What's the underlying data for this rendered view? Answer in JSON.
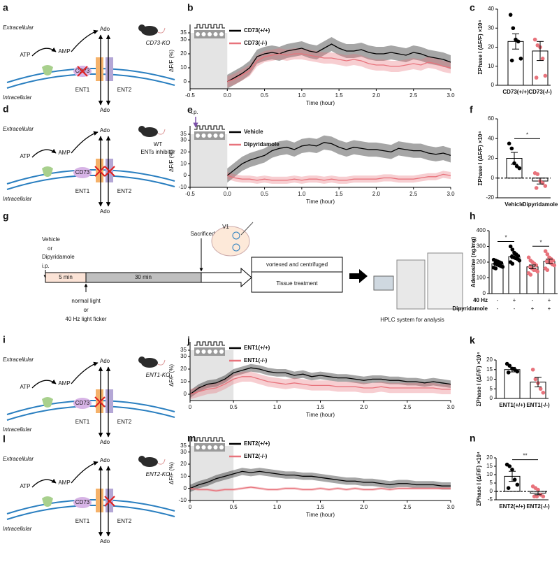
{
  "diagram_labels": {
    "extracellular": "Extracellular",
    "intracellular": "Intracellular",
    "atp": "ATP",
    "amp": "AMP",
    "ado": "Ado",
    "cd73": "CD73",
    "ent1": "ENT1",
    "ent2": "ENT2"
  },
  "diagrams": [
    {
      "panel": "a",
      "mouse_label": [
        "CD73-KO"
      ],
      "blocked": [
        "CD73"
      ]
    },
    {
      "panel": "d",
      "mouse_label": [
        "WT",
        "ENTs inhibitor"
      ],
      "blocked": [
        "ENT1",
        "ENT2"
      ]
    },
    {
      "panel": "i",
      "mouse_label": [
        "ENT1-KO"
      ],
      "blocked": [
        "ENT1"
      ]
    },
    {
      "panel": "l",
      "mouse_label": [
        "ENT2-KO"
      ],
      "blocked": [
        "ENT2"
      ]
    }
  ],
  "workflow": {
    "panel": "g",
    "treatment": [
      "Vehicle",
      "or",
      "Dipyridamole",
      "i.p."
    ],
    "stages": [
      "5 min",
      "30 min"
    ],
    "light": [
      "normal light",
      "or",
      "40 Hz light ficker"
    ],
    "sacrificed": "Sacrificed",
    "region": "V1",
    "processing": [
      "vortexed  and centrifuged",
      "Tissue treatment"
    ],
    "analysis": "HPLC system for analysis"
  },
  "chart_data": [
    {
      "panel": "b",
      "type": "line",
      "ylabel": "ΔF/F (%)",
      "xlabel": "Time (hour)",
      "xlim": [
        -0.5,
        3
      ],
      "xticks": [
        -0.5,
        {
          "value": 0,
          "label": "0.0"
        },
        0.5,
        {
          "value": 1,
          "label": "1.0"
        },
        1.5,
        {
          "value": 2,
          "label": "2.0"
        },
        2.5,
        {
          "value": 3,
          "label": "3.0"
        }
      ],
      "ylim": [
        -5,
        35
      ],
      "yticks": [
        0,
        10,
        20,
        30,
        35
      ],
      "stim_window": [
        -0.5,
        0
      ],
      "x": [
        0,
        0.1,
        0.2,
        0.3,
        0.4,
        0.5,
        0.6,
        0.7,
        0.8,
        0.9,
        1,
        1.1,
        1.2,
        1.3,
        1.4,
        1.5,
        1.6,
        1.7,
        1.8,
        1.9,
        2,
        2.1,
        2.2,
        2.3,
        2.4,
        2.5,
        2.6,
        2.7,
        2.8,
        2.9,
        3
      ],
      "series": [
        {
          "name": "CD73(+/+)",
          "color": "#000000",
          "sem": 5,
          "values": [
            0,
            3,
            6,
            10,
            18,
            20,
            21,
            20,
            22,
            23,
            24,
            22,
            21,
            24,
            27,
            24,
            22,
            22,
            23,
            21,
            20,
            20,
            21,
            20,
            19,
            21,
            20,
            18,
            17,
            16,
            14
          ]
        },
        {
          "name": "CD73(-/-)",
          "color": "#e8737c",
          "sem": 4,
          "values": [
            0,
            2,
            5,
            8,
            15,
            18,
            19,
            20,
            19,
            20,
            20,
            19,
            18,
            17,
            17,
            16,
            15,
            16,
            15,
            13,
            12,
            12,
            11,
            11,
            12,
            13,
            12,
            14,
            13,
            11,
            10
          ]
        }
      ]
    },
    {
      "panel": "c",
      "type": "bar",
      "ylabel": "ΣPhase I (ΔF/F) ×10⁴",
      "categories": [
        "CD73(+/+)",
        "CD73(-/-)"
      ],
      "values": [
        23,
        18
      ],
      "errors": [
        4,
        5
      ],
      "points": [
        [
          37,
          30,
          24,
          23,
          14,
          13
        ],
        [
          24,
          21,
          20,
          14,
          5,
          4
        ]
      ],
      "point_colors": [
        "#000000",
        "#e8737c"
      ],
      "ylim": [
        0,
        40
      ],
      "yticks": [
        0,
        10,
        20,
        30,
        40
      ]
    },
    {
      "panel": "e",
      "type": "line",
      "ylabel": "ΔF/F (%)",
      "xlabel": "Time (hour)",
      "annotation": "i.p.",
      "xlim": [
        -0.5,
        3
      ],
      "xticks": [
        -0.5,
        {
          "value": 0,
          "label": "0.0"
        },
        0.5,
        {
          "value": 1,
          "label": "1.0"
        },
        1.5,
        {
          "value": 2,
          "label": "2.0"
        },
        2.5,
        {
          "value": 3,
          "label": "3.0"
        }
      ],
      "ylim": [
        -10,
        35
      ],
      "yticks": [
        -10,
        0,
        10,
        20,
        30,
        35
      ],
      "stim_window": [
        -0.5,
        0
      ],
      "x": [
        0,
        0.1,
        0.2,
        0.3,
        0.4,
        0.5,
        0.6,
        0.7,
        0.8,
        0.9,
        1,
        1.1,
        1.2,
        1.3,
        1.4,
        1.5,
        1.6,
        1.7,
        1.8,
        1.9,
        2,
        2.1,
        2.2,
        2.3,
        2.4,
        2.5,
        2.6,
        2.7,
        2.8,
        2.9,
        3
      ],
      "series": [
        {
          "name": "Vehicle",
          "color": "#000000",
          "sem": 6,
          "values": [
            0,
            5,
            10,
            13,
            15,
            17,
            21,
            23,
            24,
            22,
            25,
            26,
            25,
            28,
            27,
            24,
            22,
            24,
            23,
            22,
            22,
            21,
            20,
            23,
            22,
            21,
            21,
            19,
            18,
            19,
            17
          ]
        },
        {
          "name": "Dipyridamole",
          "color": "#e8737c",
          "sem": 3,
          "values": [
            0,
            -2,
            -3,
            -3,
            -4,
            -3,
            -4,
            -4,
            -4,
            -3,
            -4,
            -3,
            -3,
            -4,
            -3,
            -4,
            -4,
            -3,
            -3,
            -3,
            -3,
            -2,
            -2,
            -3,
            -3,
            -3,
            -2,
            -1,
            -1,
            1,
            0
          ]
        }
      ]
    },
    {
      "panel": "f",
      "type": "bar",
      "ylabel": "ΣPhase I (ΔF/F) ×10⁴",
      "categories": [
        "Vehicle",
        "Dipyridamole"
      ],
      "values": [
        20,
        -3
      ],
      "errors": [
        6,
        3
      ],
      "points": [
        [
          35,
          30,
          15,
          12,
          10
        ],
        [
          5,
          4,
          -3,
          -5,
          -8,
          -10
        ]
      ],
      "point_colors": [
        "#000000",
        "#e8737c"
      ],
      "ylim": [
        -20,
        60
      ],
      "yticks": [
        -20,
        0,
        20,
        40,
        60
      ],
      "zero_line": true,
      "significance": [
        {
          "label": "*",
          "groups": [
            0,
            1
          ]
        }
      ]
    },
    {
      "panel": "h",
      "type": "bar",
      "ylabel": "Adenosine (ng/mg)",
      "factors": [
        {
          "name": "40 Hz",
          "levels": [
            "-",
            "+",
            "-",
            "+"
          ]
        },
        {
          "name": "Dipyridamole",
          "levels": [
            "-",
            "-",
            "+",
            "+"
          ]
        }
      ],
      "values": [
        190,
        235,
        170,
        205
      ],
      "errors": [
        10,
        12,
        12,
        14
      ],
      "points": [
        [
          215,
          210,
          205,
          200,
          195,
          190,
          185,
          180,
          175,
          170,
          165,
          160
        ],
        [
          300,
          280,
          260,
          250,
          240,
          235,
          230,
          225,
          220,
          210,
          200,
          190
        ],
        [
          230,
          210,
          200,
          190,
          180,
          170,
          160,
          150,
          150,
          140,
          130,
          120
        ],
        [
          270,
          250,
          230,
          220,
          210,
          205,
          200,
          195,
          185,
          180,
          160,
          150
        ]
      ],
      "point_colors": [
        "#000000",
        "#000000",
        "#e8737c",
        "#e8737c"
      ],
      "ylim": [
        0,
        400
      ],
      "yticks": [
        0,
        100,
        200,
        300,
        400
      ],
      "significance": [
        {
          "label": "*",
          "groups": [
            0,
            1
          ]
        },
        {
          "label": "*",
          "groups": [
            2,
            3
          ]
        }
      ]
    },
    {
      "panel": "j",
      "type": "line",
      "ylabel": "ΔF/F (%)",
      "xlabel": "Time (hour)",
      "xlim": [
        0,
        3
      ],
      "xticks": [
        0,
        0.5,
        {
          "value": 1,
          "label": "1.0"
        },
        1.5,
        {
          "value": 2,
          "label": "2.0"
        },
        2.5,
        {
          "value": 3,
          "label": "3.0"
        }
      ],
      "ylim": [
        -5,
        35
      ],
      "yticks": [
        0,
        10,
        20,
        30,
        35
      ],
      "stim_window": [
        0,
        0.5
      ],
      "x": [
        0,
        0.1,
        0.2,
        0.3,
        0.4,
        0.5,
        0.6,
        0.7,
        0.8,
        0.9,
        1,
        1.1,
        1.2,
        1.3,
        1.4,
        1.5,
        1.6,
        1.7,
        1.8,
        1.9,
        2,
        2.1,
        2.2,
        2.3,
        2.4,
        2.5,
        2.6,
        2.7,
        2.8,
        2.9,
        3
      ],
      "series": [
        {
          "name": "ENT1(+/+)",
          "color": "#000000",
          "sem": 3,
          "values": [
            0,
            5,
            8,
            9,
            12,
            17,
            19,
            21,
            20,
            18,
            17,
            17,
            15,
            16,
            14,
            15,
            14,
            13,
            13,
            12,
            11,
            12,
            12,
            11,
            11,
            10,
            10,
            9,
            10,
            9,
            8
          ]
        },
        {
          "name": "ENT1(-/-)",
          "color": "#e8737c",
          "sem": 4,
          "values": [
            0,
            2,
            4,
            5,
            8,
            12,
            14,
            14,
            12,
            10,
            9,
            8,
            9,
            8,
            7,
            7,
            7,
            6,
            6,
            6,
            5,
            5,
            6,
            5,
            5,
            5,
            5,
            5,
            5,
            4,
            4
          ]
        }
      ]
    },
    {
      "panel": "k",
      "type": "bar",
      "ylabel": "ΣPhase I (ΔF/F) ×10⁴",
      "categories": [
        "ENT1(+/+)",
        "ENT1(-/-)"
      ],
      "values": [
        15,
        8.5
      ],
      "errors": [
        1.2,
        2.5
      ],
      "points": [
        [
          18,
          17,
          15.5,
          15,
          14,
          13.5
        ],
        [
          15,
          10,
          8,
          5,
          3
        ]
      ],
      "point_colors": [
        "#000000",
        "#e8737c"
      ],
      "ylim": [
        0,
        20
      ],
      "yticks": [
        0,
        5,
        10,
        15,
        20
      ]
    },
    {
      "panel": "m",
      "type": "line",
      "ylabel": "ΔF/F (%)",
      "xlabel": "Time (hour)",
      "xlim": [
        0,
        3
      ],
      "xticks": [
        0,
        0.5,
        {
          "value": 1,
          "label": "1.0"
        },
        1.5,
        {
          "value": 2,
          "label": "2.0"
        },
        2.5,
        {
          "value": 3,
          "label": "3.0"
        }
      ],
      "ylim": [
        -10,
        35
      ],
      "yticks": [
        -10,
        0,
        10,
        20,
        30,
        35
      ],
      "stim_window": [
        0,
        0.5
      ],
      "x": [
        0,
        0.1,
        0.2,
        0.3,
        0.4,
        0.5,
        0.6,
        0.7,
        0.8,
        0.9,
        1,
        1.1,
        1.2,
        1.3,
        1.4,
        1.5,
        1.6,
        1.7,
        1.8,
        1.9,
        2,
        2.1,
        2.2,
        2.3,
        2.4,
        2.5,
        2.6,
        2.7,
        2.8,
        2.9,
        3
      ],
      "series": [
        {
          "name": "ENT2(+/+)",
          "color": "#000000",
          "sem": 3,
          "values": [
            0,
            3,
            5,
            8,
            10,
            12,
            14,
            13,
            14,
            13,
            12,
            11,
            11,
            10,
            10,
            9,
            8,
            7,
            6,
            6,
            5,
            5,
            4,
            3,
            4,
            4,
            3,
            3,
            3,
            2,
            2
          ]
        },
        {
          "name": "ENT2(-/-)",
          "color": "#e8737c",
          "sem": 1,
          "values": [
            0,
            -1,
            -1,
            -2,
            -1,
            -1,
            0,
            1,
            0,
            -1,
            -1,
            0,
            0,
            -1,
            -1,
            0,
            -1,
            0,
            -1,
            0,
            -1,
            -1,
            0,
            -1,
            0,
            0,
            0,
            0,
            0,
            0,
            0
          ]
        }
      ]
    },
    {
      "panel": "n",
      "type": "bar",
      "ylabel": "ΣPhase I (ΔF/F) ×10⁴",
      "categories": [
        "ENT2(+/+)",
        "ENT2(-/-)"
      ],
      "values": [
        9,
        -1
      ],
      "errors": [
        3,
        1
      ],
      "points": [
        [
          16,
          15,
          13,
          7,
          4,
          2
        ],
        [
          3,
          2,
          1,
          -2,
          -3,
          -3,
          -3
        ]
      ],
      "point_colors": [
        "#000000",
        "#e8737c"
      ],
      "ylim": [
        -5,
        20
      ],
      "yticks": [
        -5,
        0,
        5,
        10,
        15,
        20
      ],
      "zero_line": true,
      "significance": [
        {
          "label": "**",
          "groups": [
            0,
            1
          ]
        }
      ]
    }
  ]
}
